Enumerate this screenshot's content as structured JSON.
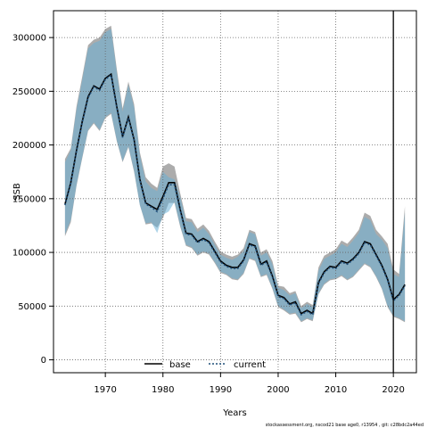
{
  "chart_data": {
    "type": "line",
    "xlabel": "Years",
    "ylabel": "SSB",
    "xlim": [
      1961,
      2024
    ],
    "ylim": [
      -12000,
      325000
    ],
    "xticks": [
      1970,
      1980,
      1990,
      2000,
      2010,
      2020
    ],
    "yticks": [
      0,
      50000,
      100000,
      150000,
      200000,
      250000,
      300000
    ],
    "grid": true,
    "legend_position": "bottom-center",
    "vline_year": 2020,
    "colors": {
      "base_band": "#9e9e9e",
      "current_band": "#6bb0d6",
      "overlap_band": "#9fc3d5",
      "base_line": "#000000",
      "current_line": "#1f4e79",
      "grid": "#666666"
    },
    "x": [
      1963,
      1964,
      1965,
      1966,
      1967,
      1968,
      1969,
      1970,
      1971,
      1972,
      1973,
      1974,
      1975,
      1976,
      1977,
      1978,
      1979,
      1980,
      1981,
      1982,
      1983,
      1984,
      1985,
      1986,
      1987,
      1988,
      1989,
      1990,
      1991,
      1992,
      1993,
      1994,
      1995,
      1996,
      1997,
      1998,
      1999,
      2000,
      2001,
      2002,
      2003,
      2004,
      2005,
      2006,
      2007,
      2008,
      2009,
      2010,
      2011,
      2012,
      2013,
      2014,
      2015,
      2016,
      2017,
      2018,
      2019,
      2020,
      2021,
      2022
    ],
    "series": [
      {
        "name": "base",
        "values": [
          145000,
          165000,
          195000,
          222000,
          245000,
          255000,
          252000,
          262000,
          266000,
          235000,
          208000,
          226000,
          205000,
          168000,
          146000,
          143000,
          140000,
          152000,
          165000,
          165000,
          140000,
          118000,
          117000,
          110000,
          113000,
          110000,
          101000,
          92000,
          88000,
          86000,
          86000,
          93000,
          108000,
          106000,
          89000,
          92000,
          78000,
          60000,
          58000,
          52000,
          54000,
          43000,
          46000,
          43000,
          72000,
          82000,
          87000,
          86000,
          92000,
          90000,
          94000,
          100000,
          110000,
          108000,
          98000,
          88000,
          75000,
          56000,
          61000,
          70000
        ],
        "lower": [
          115000,
          128000,
          162000,
          188000,
          213000,
          220000,
          213000,
          225000,
          229000,
          203000,
          184000,
          198000,
          175000,
          144000,
          126000,
          127000,
          123000,
          132000,
          146000,
          146000,
          124000,
          106000,
          104000,
          97000,
          100000,
          98000,
          90000,
          81000,
          79000,
          75000,
          74000,
          80000,
          94000,
          92000,
          77000,
          79000,
          66000,
          49000,
          46000,
          42000,
          43000,
          35000,
          38000,
          36000,
          61000,
          70000,
          74000,
          75000,
          78000,
          74000,
          77000,
          83000,
          89000,
          86000,
          77000,
          66000,
          49000,
          40000,
          38000,
          35000
        ],
        "upper": [
          187000,
          197000,
          236000,
          264000,
          293000,
          298000,
          300000,
          308000,
          311000,
          270000,
          234000,
          259000,
          238000,
          193000,
          170000,
          164000,
          160000,
          180000,
          183000,
          180000,
          155000,
          132000,
          131000,
          122000,
          126000,
          120000,
          110000,
          101000,
          98000,
          96000,
          98000,
          104000,
          121000,
          119000,
          100000,
          103000,
          92000,
          69000,
          68000,
          62000,
          64000,
          50000,
          54000,
          51000,
          86000,
          97000,
          100000,
          103000,
          111000,
          108000,
          114000,
          121000,
          137000,
          134000,
          121000,
          115000,
          108000,
          84000,
          80000,
          143000
        ]
      },
      {
        "name": "current",
        "values": [
          144000,
          164000,
          194000,
          221000,
          244000,
          254000,
          251000,
          261000,
          265000,
          234000,
          207000,
          225000,
          204000,
          167000,
          145000,
          142000,
          138000,
          150000,
          163000,
          163000,
          139000,
          117000,
          116000,
          109000,
          112000,
          109000,
          100000,
          91000,
          87000,
          85000,
          85000,
          92000,
          107000,
          105000,
          88000,
          91000,
          77000,
          59000,
          57000,
          51000,
          53000,
          42000,
          45000,
          42000,
          71000,
          81000,
          86000,
          85000,
          91000,
          89000,
          93000,
          99000,
          109000,
          107000,
          97000,
          87000,
          74000,
          55000,
          60000,
          69000
        ],
        "lower": [
          117000,
          130000,
          163000,
          189000,
          214000,
          221000,
          214000,
          226000,
          230000,
          204000,
          185000,
          199000,
          176000,
          144000,
          127000,
          128000,
          118000,
          135000,
          138000,
          147000,
          125000,
          107000,
          105000,
          98000,
          101000,
          99000,
          91000,
          82000,
          80000,
          76000,
          75000,
          81000,
          95000,
          93000,
          78000,
          80000,
          67000,
          50000,
          47000,
          43000,
          44000,
          36000,
          39000,
          37000,
          62000,
          71000,
          75000,
          76000,
          79000,
          75000,
          78000,
          84000,
          90000,
          87000,
          78000,
          67000,
          50000,
          41000,
          39000,
          36000
        ],
        "upper": [
          184000,
          195000,
          233000,
          261000,
          290000,
          295000,
          297000,
          305000,
          308000,
          267000,
          231000,
          256000,
          235000,
          190000,
          166000,
          160000,
          157000,
          175000,
          170000,
          168000,
          152000,
          129000,
          128000,
          119000,
          123000,
          117000,
          107000,
          98000,
          95000,
          93000,
          96000,
          101000,
          119000,
          117000,
          97000,
          100000,
          89000,
          67000,
          65000,
          60000,
          62000,
          48000,
          52000,
          49000,
          83000,
          94000,
          97000,
          100000,
          108000,
          105000,
          111000,
          118000,
          133000,
          130000,
          117000,
          112000,
          104000,
          80000,
          77000,
          137000
        ]
      }
    ],
    "footer": "stockassessment.org, nscod21 base age0, r13954 , git: c28bdc2a44ed"
  }
}
